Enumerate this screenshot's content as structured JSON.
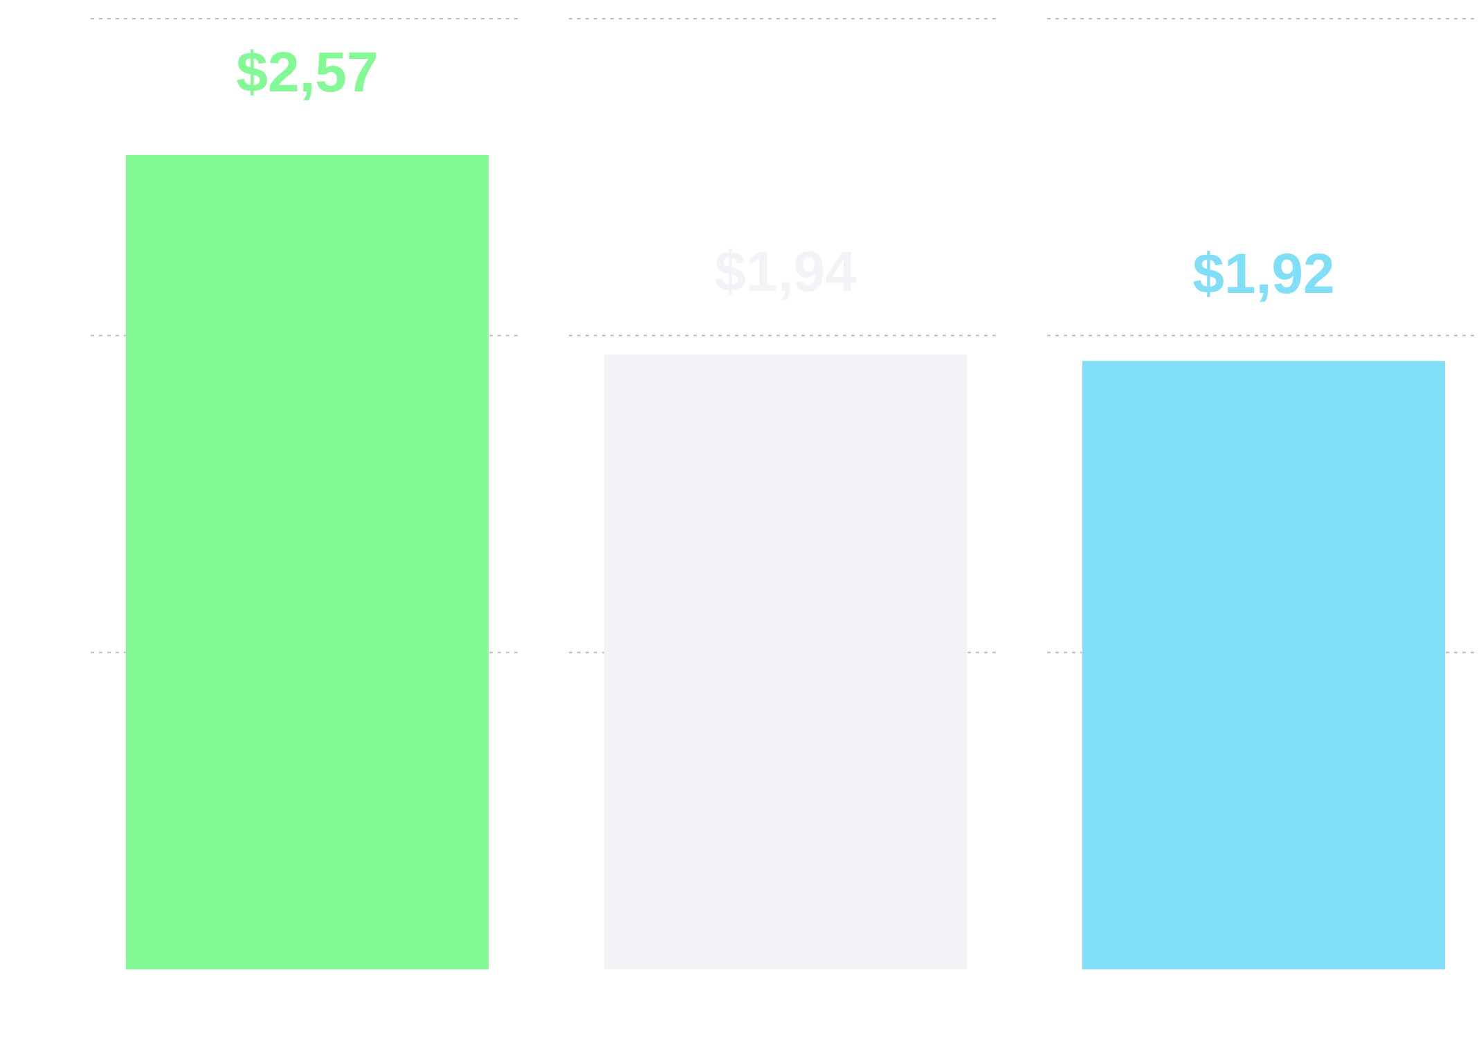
{
  "chart_data": {
    "type": "bar",
    "title": "",
    "xlabel": "",
    "ylabel": "",
    "categories": [
      "",
      "",
      ""
    ],
    "values": [
      2.57,
      1.94,
      1.92
    ],
    "data_labels": [
      "$2,57",
      "$1,94",
      "$1,92"
    ],
    "colors": [
      "#82f995",
      "#f2f3f7",
      "#80def7"
    ],
    "ylim": [
      0,
      3
    ],
    "gridlines": [
      1,
      2,
      3
    ],
    "grid": true,
    "grid_style": "dashed",
    "legend": "none"
  }
}
